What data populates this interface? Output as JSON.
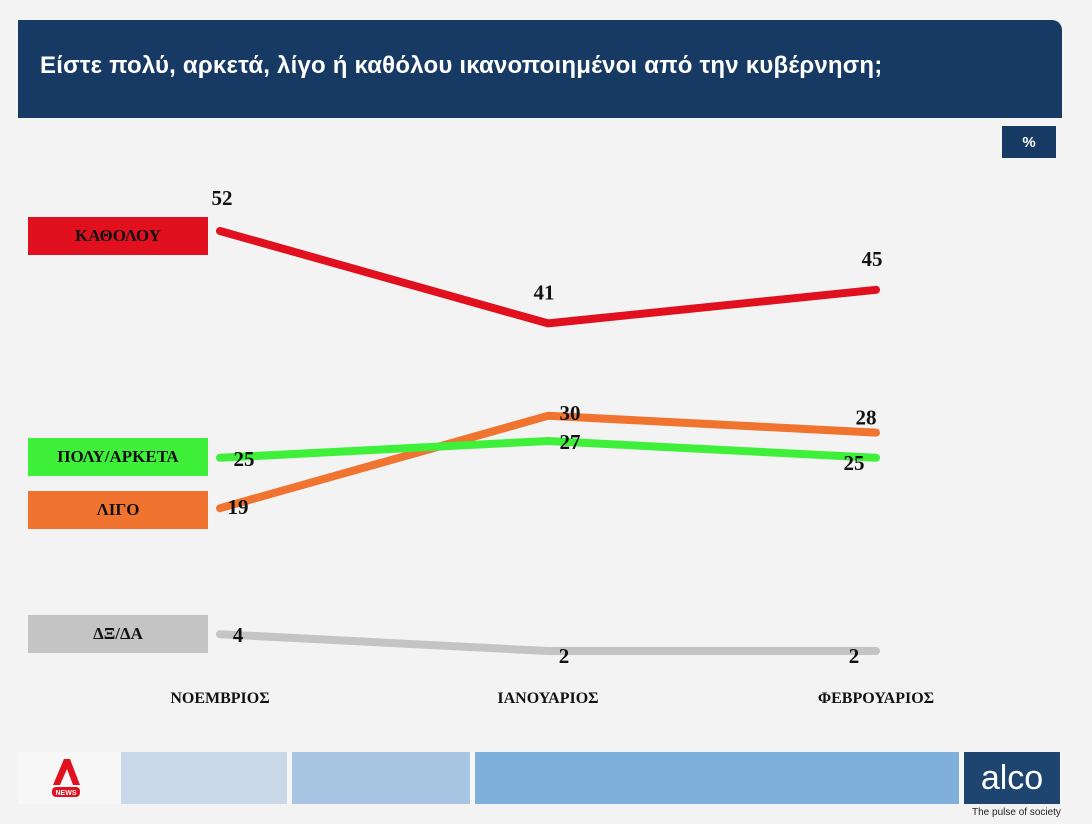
{
  "header": {
    "title": "Είστε πολύ, αρκετά, λίγο ή καθόλου ικανοποιημένοι από την κυβέρνηση;"
  },
  "unit_badge": "%",
  "legend": [
    {
      "label": "ΚΑΘΟΛΟΥ",
      "color": "#e0101f"
    },
    {
      "label": "ΠΟΛΥ/ΑΡΚΕΤΑ",
      "color": "#3ff03a"
    },
    {
      "label": "ΛΙΓΟ",
      "color": "#f07430"
    },
    {
      "label": "ΔΞ/ΔΑ",
      "color": "#c4c4c4"
    }
  ],
  "footer": {
    "left_logo": "NEWS",
    "brand": "alco",
    "tagline": "The pulse of society"
  },
  "chart_data": {
    "type": "line",
    "title": "Είστε πολύ, αρκετά, λίγο ή καθόλου ικανοποιημένοι από την κυβέρνηση;",
    "unit": "%",
    "categories": [
      "ΝΟΕΜΒΡΙΟΣ",
      "ΙΑΝΟΥΑΡΙΟΣ",
      "ΦΕΒΡΟΥΑΡΙΟΣ"
    ],
    "series": [
      {
        "name": "ΚΑΘΟΛΟΥ",
        "values": [
          52,
          41,
          45
        ],
        "color": "#e0101f"
      },
      {
        "name": "ΛΙΓΟ",
        "values": [
          19,
          30,
          28
        ],
        "color": "#f07430"
      },
      {
        "name": "ΠΟΛΥ/ΑΡΚΕΤΑ",
        "values": [
          25,
          27,
          25
        ],
        "color": "#3ff03a"
      },
      {
        "name": "ΔΞ/ΔΑ",
        "values": [
          4,
          2,
          2
        ],
        "color": "#c4c4c4"
      }
    ],
    "grid": false,
    "legend_position": "left"
  }
}
